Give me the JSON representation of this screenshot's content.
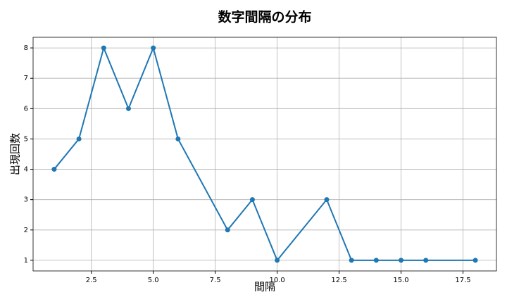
{
  "chart_data": {
    "type": "line",
    "title": "数字間隔の分布",
    "x_label": "間隔",
    "y_label": "出現回数",
    "x": [
      1,
      2,
      3,
      4,
      5,
      6,
      8,
      9,
      10,
      12,
      13,
      14,
      15,
      16,
      18
    ],
    "series": [
      {
        "color": "#1f77b4",
        "values": [
          4,
          5,
          8,
          6,
          8,
          5,
          2,
          3,
          1,
          3,
          1,
          1,
          1,
          1,
          1
        ]
      }
    ],
    "xlim": [
      0.15,
      18.85
    ],
    "ylim": [
      0.65,
      8.35
    ],
    "xticks": [
      2.5,
      {
        "value": 5,
        "label": "5.0"
      },
      7.5,
      {
        "value": 10,
        "label": "10.0"
      },
      12.5,
      {
        "value": 15,
        "label": "15.0"
      },
      17.5
    ],
    "yticks": [
      1,
      2,
      3,
      4,
      5,
      6,
      7,
      8
    ],
    "grid": true,
    "markers": true
  }
}
